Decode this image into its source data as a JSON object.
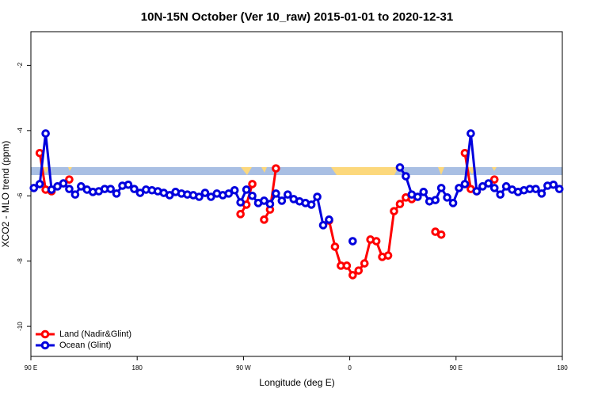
{
  "chart_data": {
    "type": "line",
    "title": "10N-15N October (Ver 10_raw)   2015-01-01 to 2020-12-31",
    "x_label": "Longitude (deg E)",
    "y_label": "XCO2 - MLO trend (ppm)",
    "x": [
      92.5,
      97.5,
      102.5,
      107.5,
      112.5,
      117.5,
      122.5,
      127.5,
      132.5,
      137.5,
      142.5,
      147.5,
      152.5,
      157.5,
      162.5,
      167.5,
      172.5,
      177.5,
      182.5,
      187.5,
      192.5,
      197.5,
      202.5,
      207.5,
      212.5,
      217.5,
      222.5,
      227.5,
      232.5,
      237.5,
      242.5,
      247.5,
      252.5,
      257.5,
      262.5,
      267.5,
      272.5,
      277.5,
      282.5,
      287.5,
      292.5,
      297.5,
      302.5,
      307.5,
      312.5,
      317.5,
      322.5,
      327.5,
      332.5,
      337.5,
      342.5,
      347.5,
      352.5,
      357.5,
      362.5,
      367.5,
      372.5,
      377.5,
      382.5,
      387.5,
      392.5,
      397.5,
      402.5,
      407.5,
      412.5,
      417.5,
      422.5,
      427.5,
      432.5,
      437.5,
      442.5,
      447.5,
      452.5,
      457.5,
      462.5,
      467.5,
      472.5,
      477.5,
      482.5,
      487.5,
      492.5,
      497.5,
      502.5,
      507.5,
      512.5,
      517.5,
      522.5,
      527.5,
      532.5,
      537.5
    ],
    "series": [
      {
        "name": "Land (Nadir&Glint)",
        "color": "#ff0000",
        "values": [
          null,
          -4.69,
          -5.81,
          -5.86,
          null,
          null,
          -5.5,
          null,
          null,
          null,
          null,
          null,
          null,
          null,
          null,
          null,
          null,
          null,
          null,
          null,
          null,
          null,
          null,
          null,
          null,
          null,
          null,
          null,
          null,
          null,
          null,
          null,
          null,
          null,
          null,
          -6.56,
          -6.27,
          -5.64,
          null,
          -6.73,
          -6.42,
          -5.16,
          null,
          null,
          null,
          null,
          null,
          null,
          null,
          null,
          -6.76,
          -7.56,
          -8.14,
          -8.14,
          -8.43,
          -8.29,
          -8.07,
          -7.34,
          -7.39,
          -7.87,
          -7.83,
          -6.47,
          -6.25,
          -6.05,
          -6.1,
          null,
          null,
          null,
          -7.1,
          -7.19,
          null,
          null,
          null,
          -4.69,
          -5.79,
          -5.86,
          null,
          null,
          -5.5,
          null,
          null,
          null,
          null,
          null,
          null,
          null,
          null,
          null,
          null,
          null
        ]
      },
      {
        "name": "Ocean (Glint)",
        "color": "#0000dd",
        "values": [
          -5.76,
          -5.64,
          -4.09,
          -5.81,
          -5.71,
          -5.62,
          -5.79,
          -5.96,
          -5.71,
          -5.81,
          -5.88,
          -5.86,
          -5.79,
          -5.79,
          -5.93,
          -5.69,
          -5.66,
          -5.79,
          -5.91,
          -5.81,
          -5.83,
          -5.86,
          -5.91,
          -5.98,
          -5.88,
          -5.93,
          -5.96,
          -5.98,
          -6.03,
          -5.91,
          -6.03,
          -5.93,
          -5.98,
          -5.93,
          -5.83,
          -6.2,
          -5.81,
          -6.0,
          -6.22,
          -6.15,
          -6.25,
          -5.93,
          -6.15,
          -5.96,
          -6.1,
          -6.17,
          -6.22,
          -6.27,
          -6.03,
          -6.9,
          -6.73,
          null,
          null,
          null,
          -7.39,
          null,
          null,
          null,
          null,
          null,
          null,
          null,
          -5.13,
          -5.4,
          -5.96,
          -6.03,
          -5.88,
          -6.17,
          -6.13,
          -5.76,
          -6.05,
          -6.22,
          -5.76,
          -5.64,
          -4.09,
          -5.86,
          -5.71,
          -5.62,
          -5.76,
          -5.96,
          -5.71,
          -5.81,
          -5.88,
          -5.83,
          -5.79,
          -5.79,
          -5.93,
          -5.69,
          -5.66,
          -5.79
        ]
      }
    ],
    "xlim": [
      90,
      540
    ],
    "xticks": [
      {
        "value": 90,
        "label": "90 E"
      },
      180,
      {
        "value": 270,
        "label": "90 W"
      },
      {
        "value": 360,
        "label": "0"
      },
      {
        "value": 450,
        "label": "90 E"
      },
      {
        "value": 540,
        "label": "180"
      }
    ],
    "ylim": [
      -10.92,
      -0.97
    ],
    "yticks": [
      -10,
      -8,
      -6,
      -4,
      -2
    ],
    "legend": "bottom-left"
  }
}
